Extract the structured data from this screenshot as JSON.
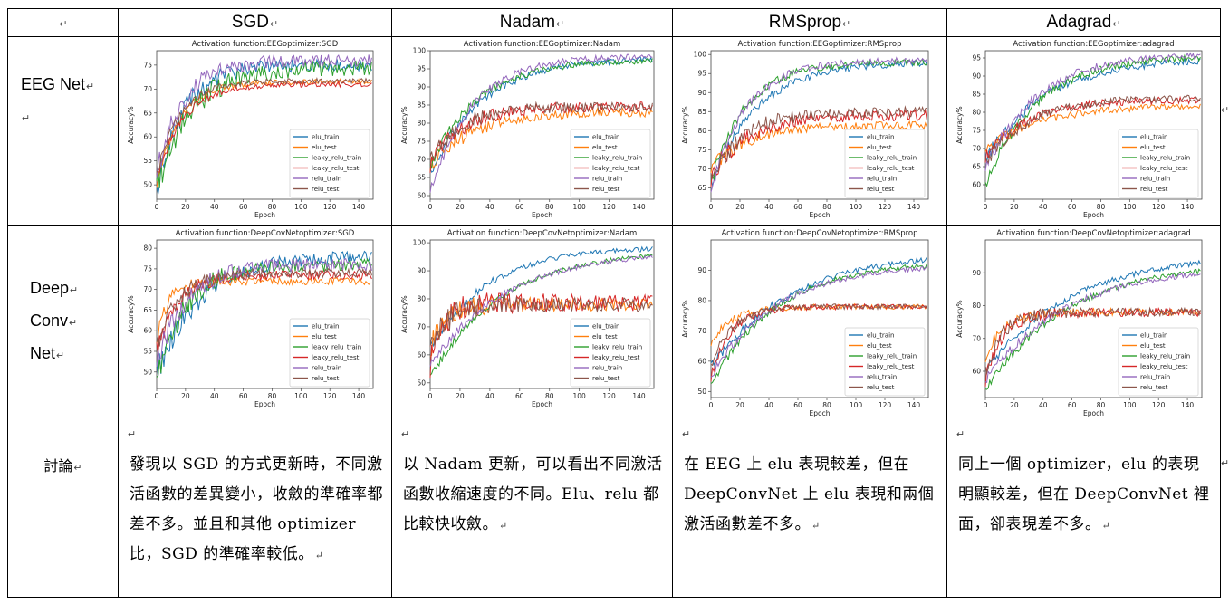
{
  "table": {
    "headers": [
      "",
      "SGD",
      "Nadam",
      "RMSprop",
      "Adagrad"
    ],
    "row_labels": {
      "eeg": "EEG Net",
      "deep": [
        "Deep",
        "Conv",
        "Net"
      ],
      "discussion": "討論"
    },
    "discussion": [
      "發現以 SGD 的方式更新時，不同激活函數的差異變小，收斂的準確率都差不多。並且和其他 optimizer 比，SGD 的準確率較低。",
      "以 Nadam 更新，可以看出不同激活函數收縮速度的不同。Elu、relu 都比較快收斂。",
      "在 EEG 上 elu 表現較差，但在 DeepConvNet 上 elu 表現和兩個激活函數差不多。",
      "同上一個 optimizer，elu 的表現明顯較差，但在 DeepConvNet 裡面，卻表現差不多。"
    ],
    "paragraph_mark": "↵"
  },
  "chart_data": [
    {
      "type": "line",
      "title": "Activation function:EEGoptimizer:SGD",
      "xlabel": "Epoch",
      "ylabel": "Accuracy%",
      "xlim": [
        0,
        150
      ],
      "ylim": [
        47,
        78
      ],
      "xticks": [
        0,
        20,
        40,
        60,
        80,
        100,
        120,
        140
      ],
      "yticks": [
        50,
        55,
        60,
        65,
        70,
        75
      ],
      "legend_position": "bottom-right",
      "series": [
        {
          "name": "elu_train",
          "color": "#1f77b4",
          "start": 48,
          "end": 75,
          "tau": 18,
          "noise": 1.2
        },
        {
          "name": "elu_test",
          "color": "#ff7f0e",
          "start": 50,
          "end": 71.5,
          "tau": 16,
          "noise": 0.5
        },
        {
          "name": "leaky_relu_train",
          "color": "#2ca02c",
          "start": 50,
          "end": 74.5,
          "tau": 24,
          "noise": 1.6
        },
        {
          "name": "leaky_relu_test",
          "color": "#d62728",
          "start": 51,
          "end": 71,
          "tau": 18,
          "noise": 0.5
        },
        {
          "name": "relu_train",
          "color": "#9467bd",
          "start": 52,
          "end": 76,
          "tau": 18,
          "noise": 1.2
        },
        {
          "name": "relu_test",
          "color": "#8c564b",
          "start": 52,
          "end": 71.7,
          "tau": 16,
          "noise": 0.5
        }
      ]
    },
    {
      "type": "line",
      "title": "Activation function:EEGoptimizer:Nadam",
      "xlabel": "Epoch",
      "ylabel": "Accuracy%",
      "xlim": [
        0,
        150
      ],
      "ylim": [
        59,
        100
      ],
      "xticks": [
        0,
        20,
        40,
        60,
        80,
        100,
        120,
        140
      ],
      "yticks": [
        60,
        65,
        70,
        75,
        80,
        85,
        90,
        95,
        100
      ],
      "legend_position": "bottom-right",
      "series": [
        {
          "name": "elu_train",
          "color": "#1f77b4",
          "start": 66,
          "end": 98,
          "tau": 35,
          "noise": 0.8
        },
        {
          "name": "elu_test",
          "color": "#ff7f0e",
          "start": 68,
          "end": 83,
          "tau": 28,
          "noise": 1.2
        },
        {
          "name": "leaky_relu_train",
          "color": "#2ca02c",
          "start": 68,
          "end": 97.5,
          "tau": 32,
          "noise": 0.8
        },
        {
          "name": "leaky_relu_test",
          "color": "#d62728",
          "start": 69,
          "end": 84.5,
          "tau": 22,
          "noise": 1.3
        },
        {
          "name": "relu_train",
          "color": "#9467bd",
          "start": 61,
          "end": 98.5,
          "tau": 28,
          "noise": 0.8
        },
        {
          "name": "relu_test",
          "color": "#8c564b",
          "start": 69,
          "end": 84.5,
          "tau": 20,
          "noise": 1.3
        }
      ]
    },
    {
      "type": "line",
      "title": "Activation function:EEGoptimizer:RMSprop",
      "xlabel": "Epoch",
      "ylabel": "Accuracy%",
      "xlim": [
        0,
        150
      ],
      "ylim": [
        62,
        101
      ],
      "xticks": [
        0,
        20,
        40,
        60,
        80,
        100,
        120,
        140
      ],
      "yticks": [
        65,
        70,
        75,
        80,
        85,
        90,
        95,
        100
      ],
      "legend_position": "bottom-right",
      "series": [
        {
          "name": "elu_train",
          "color": "#1f77b4",
          "start": 66,
          "end": 98,
          "tau": 32,
          "noise": 0.8
        },
        {
          "name": "elu_test",
          "color": "#ff7f0e",
          "start": 70,
          "end": 81.5,
          "tau": 25,
          "noise": 1.0
        },
        {
          "name": "leaky_relu_train",
          "color": "#2ca02c",
          "start": 66,
          "end": 98,
          "tau": 24,
          "noise": 0.8
        },
        {
          "name": "leaky_relu_test",
          "color": "#d62728",
          "start": 68,
          "end": 84,
          "tau": 24,
          "noise": 1.3
        },
        {
          "name": "relu_train",
          "color": "#9467bd",
          "start": 64,
          "end": 98.5,
          "tau": 24,
          "noise": 0.8
        },
        {
          "name": "relu_test",
          "color": "#8c564b",
          "start": 67,
          "end": 85,
          "tau": 22,
          "noise": 1.3
        }
      ]
    },
    {
      "type": "line",
      "title": "Activation function:EEGoptimizer:adagrad",
      "xlabel": "Epoch",
      "ylabel": "Accuracy%",
      "xlim": [
        0,
        150
      ],
      "ylim": [
        56,
        97
      ],
      "xticks": [
        0,
        20,
        40,
        60,
        80,
        100,
        120,
        140
      ],
      "yticks": [
        60,
        65,
        70,
        75,
        80,
        85,
        90,
        95
      ],
      "legend_position": "bottom-right",
      "series": [
        {
          "name": "elu_train",
          "color": "#1f77b4",
          "start": 67,
          "end": 95,
          "tau": 42,
          "noise": 0.9
        },
        {
          "name": "elu_test",
          "color": "#ff7f0e",
          "start": 70,
          "end": 82,
          "tau": 40,
          "noise": 0.8
        },
        {
          "name": "leaky_relu_train",
          "color": "#2ca02c",
          "start": 60,
          "end": 95.5,
          "tau": 35,
          "noise": 0.9
        },
        {
          "name": "leaky_relu_test",
          "color": "#d62728",
          "start": 68,
          "end": 83.5,
          "tau": 30,
          "noise": 0.9
        },
        {
          "name": "relu_train",
          "color": "#9467bd",
          "start": 64,
          "end": 96,
          "tau": 35,
          "noise": 0.9
        },
        {
          "name": "relu_test",
          "color": "#8c564b",
          "start": 66,
          "end": 84,
          "tau": 30,
          "noise": 0.9
        }
      ]
    },
    {
      "type": "line",
      "title": "Activation function:DeepCovNetoptimizer:SGD",
      "xlabel": "Epoch",
      "ylabel": "Accuracy%",
      "xlim": [
        0,
        150
      ],
      "ylim": [
        46,
        82
      ],
      "xticks": [
        0,
        20,
        40,
        60,
        80,
        100,
        120,
        140
      ],
      "yticks": [
        50,
        55,
        60,
        65,
        70,
        75,
        80
      ],
      "legend_position": "bottom-right",
      "series": [
        {
          "name": "elu_train",
          "color": "#1f77b4",
          "start": 50,
          "end": 78,
          "tau": 30,
          "noise": 1.5
        },
        {
          "name": "elu_test",
          "color": "#ff7f0e",
          "start": 58,
          "end": 72,
          "tau": 8,
          "noise": 0.8
        },
        {
          "name": "leaky_relu_train",
          "color": "#2ca02c",
          "start": 48,
          "end": 76,
          "tau": 20,
          "noise": 1.5
        },
        {
          "name": "leaky_relu_test",
          "color": "#d62728",
          "start": 55,
          "end": 73.5,
          "tau": 15,
          "noise": 1.0
        },
        {
          "name": "relu_train",
          "color": "#9467bd",
          "start": 52,
          "end": 76,
          "tau": 20,
          "noise": 1.5
        },
        {
          "name": "relu_test",
          "color": "#8c564b",
          "start": 56,
          "end": 74,
          "tau": 15,
          "noise": 1.0
        }
      ]
    },
    {
      "type": "line",
      "title": "Activation function:DeepCovNetoptimizer:Nadam",
      "xlabel": "Epoch",
      "ylabel": "Accuracy%",
      "xlim": [
        0,
        150
      ],
      "ylim": [
        48,
        101
      ],
      "xticks": [
        0,
        20,
        40,
        60,
        80,
        100,
        120,
        140
      ],
      "yticks": [
        50,
        60,
        70,
        80,
        90,
        100
      ],
      "legend_position": "bottom-right",
      "series": [
        {
          "name": "elu_train",
          "color": "#1f77b4",
          "start": 62,
          "end": 98.5,
          "tau": 38,
          "noise": 0.8
        },
        {
          "name": "elu_test",
          "color": "#ff7f0e",
          "start": 62,
          "end": 78,
          "tau": 10,
          "noise": 2.2
        },
        {
          "name": "leaky_relu_train",
          "color": "#2ca02c",
          "start": 52,
          "end": 97.5,
          "tau": 48,
          "noise": 0.8
        },
        {
          "name": "leaky_relu_test",
          "color": "#d62728",
          "start": 58,
          "end": 78.5,
          "tau": 10,
          "noise": 2.8
        },
        {
          "name": "relu_train",
          "color": "#9467bd",
          "start": 56,
          "end": 97,
          "tau": 50,
          "noise": 0.8
        },
        {
          "name": "relu_test",
          "color": "#8c564b",
          "start": 60,
          "end": 78,
          "tau": 10,
          "noise": 2.4
        }
      ]
    },
    {
      "type": "line",
      "title": "Activation function:DeepCovNetoptimizer:RMSprop",
      "xlabel": "Epoch",
      "ylabel": "Accuracy%",
      "xlim": [
        0,
        150
      ],
      "ylim": [
        48,
        100
      ],
      "xticks": [
        0,
        20,
        40,
        60,
        80,
        100,
        120,
        140
      ],
      "yticks": [
        50,
        60,
        70,
        80,
        90
      ],
      "legend_position": "bottom-right",
      "series": [
        {
          "name": "elu_train",
          "color": "#1f77b4",
          "start": 58,
          "end": 96,
          "tau": 55,
          "noise": 0.8
        },
        {
          "name": "elu_test",
          "color": "#ff7f0e",
          "start": 66,
          "end": 78,
          "tau": 15,
          "noise": 0.8
        },
        {
          "name": "leaky_relu_train",
          "color": "#2ca02c",
          "start": 52,
          "end": 93,
          "tau": 45,
          "noise": 0.8
        },
        {
          "name": "leaky_relu_test",
          "color": "#d62728",
          "start": 55,
          "end": 78,
          "tau": 14,
          "noise": 0.8
        },
        {
          "name": "relu_train",
          "color": "#9467bd",
          "start": 55,
          "end": 92,
          "tau": 45,
          "noise": 0.8
        },
        {
          "name": "relu_test",
          "color": "#8c564b",
          "start": 58,
          "end": 78,
          "tau": 14,
          "noise": 0.8
        }
      ]
    },
    {
      "type": "line",
      "title": "Activation function:DeepCovNetoptimizer:adagrad",
      "xlabel": "Epoch",
      "ylabel": "Accuracy%",
      "xlim": [
        0,
        150
      ],
      "ylim": [
        52,
        100
      ],
      "xticks": [
        0,
        20,
        40,
        60,
        80,
        100,
        120,
        140
      ],
      "yticks": [
        60,
        70,
        80,
        90
      ],
      "legend_position": "bottom-right",
      "series": [
        {
          "name": "elu_train",
          "color": "#1f77b4",
          "start": 60,
          "end": 96,
          "tau": 60,
          "noise": 0.8
        },
        {
          "name": "elu_test",
          "color": "#ff7f0e",
          "start": 64,
          "end": 78,
          "tau": 12,
          "noise": 1.0
        },
        {
          "name": "leaky_relu_train",
          "color": "#2ca02c",
          "start": 54,
          "end": 93,
          "tau": 55,
          "noise": 0.8
        },
        {
          "name": "leaky_relu_test",
          "color": "#d62728",
          "start": 58,
          "end": 78,
          "tau": 12,
          "noise": 1.2
        },
        {
          "name": "relu_train",
          "color": "#9467bd",
          "start": 57,
          "end": 92,
          "tau": 55,
          "noise": 0.8
        },
        {
          "name": "relu_test",
          "color": "#8c564b",
          "start": 60,
          "end": 78,
          "tau": 12,
          "noise": 1.2
        }
      ]
    }
  ]
}
